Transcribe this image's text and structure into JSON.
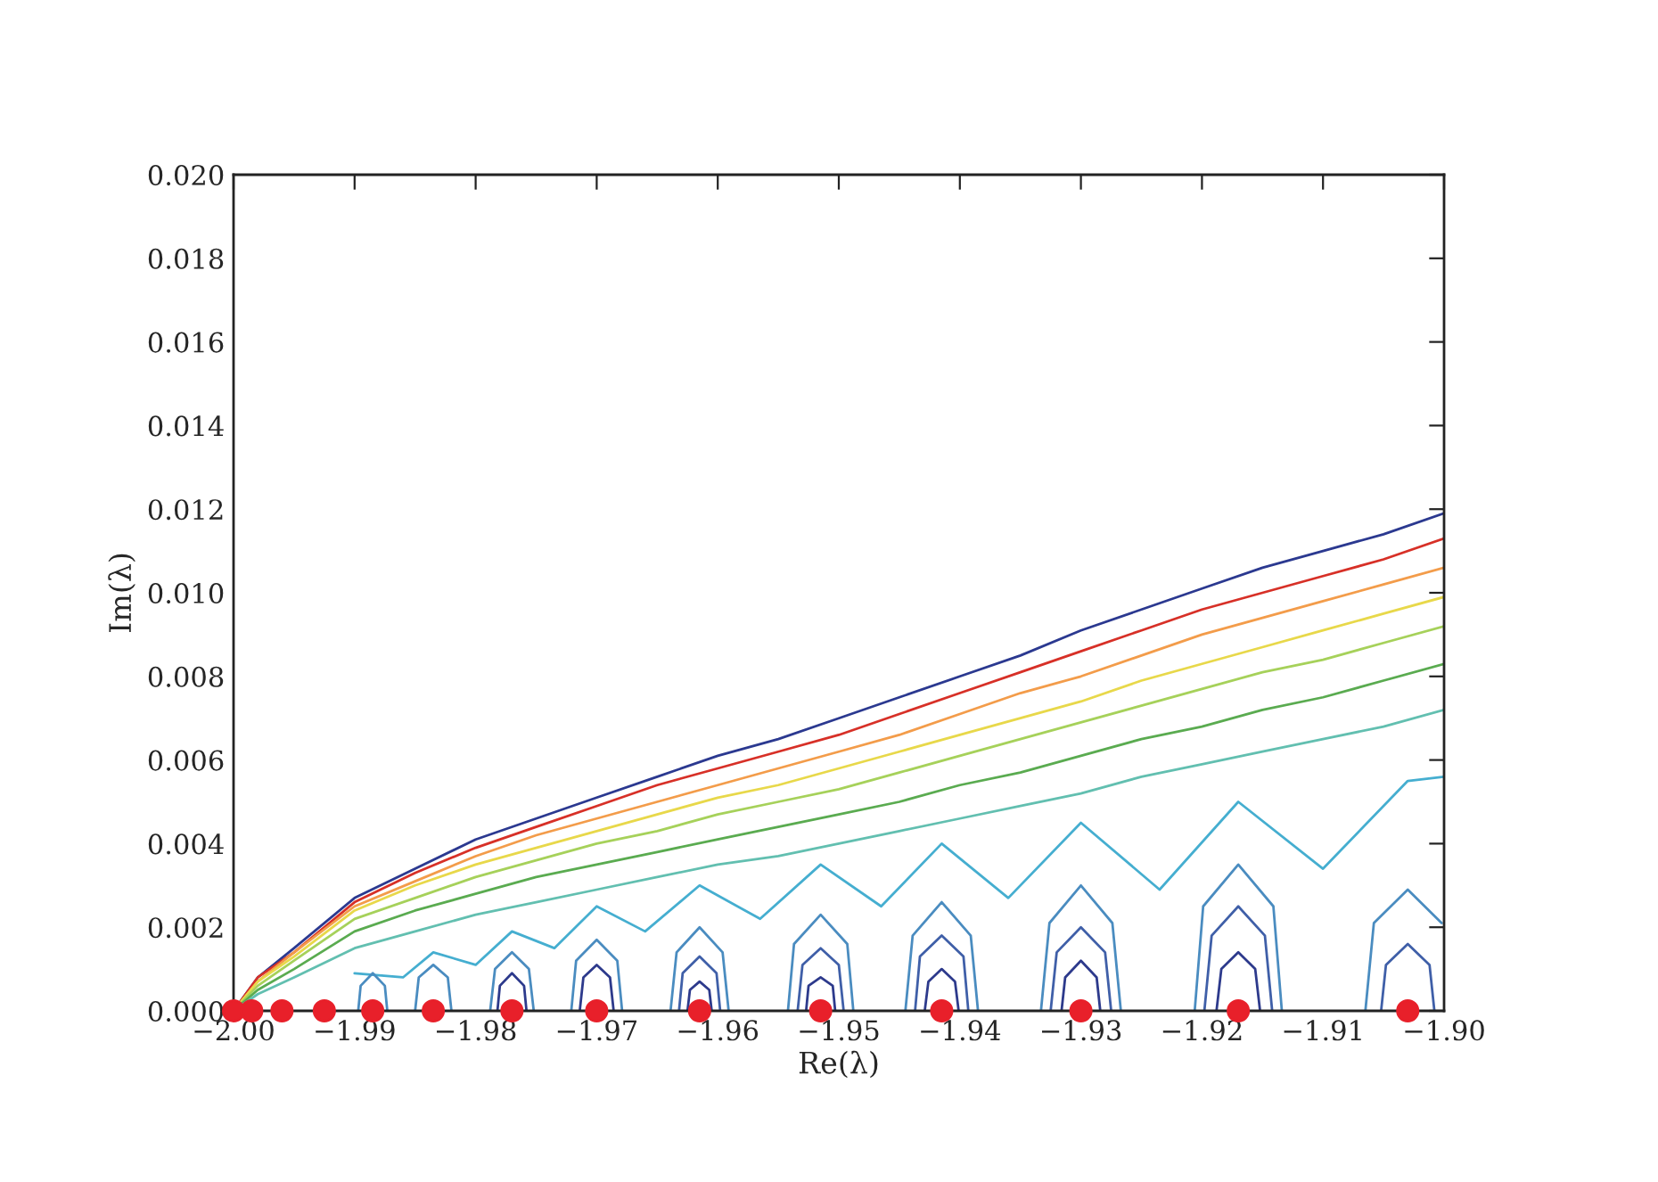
{
  "chart_data": {
    "type": "line",
    "xlabel": "Re(λ)",
    "ylabel": "Im(λ)",
    "xlim": [
      -2.0,
      -1.9
    ],
    "ylim": [
      0,
      0.02
    ],
    "xticks": [
      {
        "value": -2.0,
        "label": "−2.00"
      },
      {
        "value": -1.99,
        "label": "−1.99"
      },
      {
        "value": -1.98,
        "label": "−1.98"
      },
      {
        "value": -1.97,
        "label": "−1.97"
      },
      {
        "value": -1.96,
        "label": "−1.96"
      },
      {
        "value": -1.95,
        "label": "−1.95"
      },
      {
        "value": -1.94,
        "label": "−1.94"
      },
      {
        "value": -1.93,
        "label": "−1.93"
      },
      {
        "value": -1.92,
        "label": "−1.92"
      },
      {
        "value": -1.91,
        "label": "−1.91"
      },
      {
        "value": -1.9,
        "label": "−1.90"
      }
    ],
    "yticks": [
      {
        "value": 0,
        "label": "0.000"
      },
      {
        "value": 0.002,
        "label": "0.002"
      },
      {
        "value": 0.004,
        "label": "0.004"
      },
      {
        "value": 0.006,
        "label": "0.006"
      },
      {
        "value": 0.008,
        "label": "0.008"
      },
      {
        "value": 0.01,
        "label": "0.010"
      },
      {
        "value": 0.012,
        "label": "0.012"
      },
      {
        "value": 0.014,
        "label": "0.014"
      },
      {
        "value": 0.016,
        "label": "0.016"
      },
      {
        "value": 0.018,
        "label": "0.018"
      },
      {
        "value": 0.02,
        "label": "0.020"
      }
    ],
    "grid": false,
    "legend": false,
    "series": [
      {
        "color": "#2b3990",
        "x": [
          -2.0,
          -1.998,
          -1.995,
          -1.99,
          -1.985,
          -1.98,
          -1.975,
          -1.97,
          -1.965,
          -1.96,
          -1.955,
          -1.95,
          -1.945,
          -1.94,
          -1.935,
          -1.93,
          -1.925,
          -1.92,
          -1.915,
          -1.91,
          -1.905,
          -1.9
        ],
        "values": [
          0,
          0.0008,
          0.0015,
          0.0027,
          0.0034,
          0.0041,
          0.0046,
          0.0051,
          0.0056,
          0.0061,
          0.0065,
          0.007,
          0.0075,
          0.008,
          0.0085,
          0.0091,
          0.0096,
          0.0101,
          0.0106,
          0.011,
          0.0114,
          0.0119
        ]
      },
      {
        "color": "#d73027",
        "x": [
          -2.0,
          -1.998,
          -1.995,
          -1.99,
          -1.985,
          -1.98,
          -1.975,
          -1.97,
          -1.965,
          -1.96,
          -1.955,
          -1.95,
          -1.945,
          -1.94,
          -1.935,
          -1.93,
          -1.925,
          -1.92,
          -1.915,
          -1.91,
          -1.905,
          -1.9
        ],
        "values": [
          0,
          0.0008,
          0.0014,
          0.0026,
          0.0033,
          0.0039,
          0.0044,
          0.0049,
          0.0054,
          0.0058,
          0.0062,
          0.0066,
          0.0071,
          0.0076,
          0.0081,
          0.0086,
          0.0091,
          0.0096,
          0.01,
          0.0104,
          0.0108,
          0.0113
        ]
      },
      {
        "color": "#f39c4a",
        "x": [
          -2.0,
          -1.998,
          -1.995,
          -1.99,
          -1.985,
          -1.98,
          -1.975,
          -1.97,
          -1.965,
          -1.96,
          -1.955,
          -1.95,
          -1.945,
          -1.94,
          -1.935,
          -1.93,
          -1.925,
          -1.92,
          -1.915,
          -1.91,
          -1.905,
          -1.9
        ],
        "values": [
          0,
          0.0007,
          0.0014,
          0.0025,
          0.0031,
          0.0037,
          0.0042,
          0.0046,
          0.005,
          0.0054,
          0.0058,
          0.0062,
          0.0066,
          0.0071,
          0.0076,
          0.008,
          0.0085,
          0.009,
          0.0094,
          0.0098,
          0.0102,
          0.0106
        ]
      },
      {
        "color": "#e8d84a",
        "x": [
          -2.0,
          -1.998,
          -1.995,
          -1.99,
          -1.985,
          -1.98,
          -1.975,
          -1.97,
          -1.965,
          -1.96,
          -1.955,
          -1.95,
          -1.945,
          -1.94,
          -1.935,
          -1.93,
          -1.925,
          -1.92,
          -1.915,
          -1.91,
          -1.905,
          -1.9
        ],
        "values": [
          0,
          0.0007,
          0.0013,
          0.0024,
          0.003,
          0.0035,
          0.0039,
          0.0043,
          0.0047,
          0.0051,
          0.0054,
          0.0058,
          0.0062,
          0.0066,
          0.007,
          0.0074,
          0.0079,
          0.0083,
          0.0087,
          0.0091,
          0.0095,
          0.0099
        ]
      },
      {
        "color": "#a6d15a",
        "x": [
          -2.0,
          -1.998,
          -1.995,
          -1.99,
          -1.985,
          -1.98,
          -1.975,
          -1.97,
          -1.965,
          -1.96,
          -1.955,
          -1.95,
          -1.945,
          -1.94,
          -1.935,
          -1.93,
          -1.925,
          -1.92,
          -1.915,
          -1.91,
          -1.905,
          -1.9
        ],
        "values": [
          0,
          0.0006,
          0.0012,
          0.0022,
          0.0027,
          0.0032,
          0.0036,
          0.004,
          0.0043,
          0.0047,
          0.005,
          0.0053,
          0.0057,
          0.0061,
          0.0065,
          0.0069,
          0.0073,
          0.0077,
          0.0081,
          0.0084,
          0.0088,
          0.0092
        ]
      },
      {
        "color": "#5aab50",
        "x": [
          -2.0,
          -1.998,
          -1.995,
          -1.99,
          -1.985,
          -1.98,
          -1.975,
          -1.97,
          -1.965,
          -1.96,
          -1.955,
          -1.95,
          -1.945,
          -1.94,
          -1.935,
          -1.93,
          -1.925,
          -1.92,
          -1.915,
          -1.91,
          -1.905,
          -1.9
        ],
        "values": [
          0,
          0.0005,
          0.001,
          0.0019,
          0.0024,
          0.0028,
          0.0032,
          0.0035,
          0.0038,
          0.0041,
          0.0044,
          0.0047,
          0.005,
          0.0054,
          0.0057,
          0.0061,
          0.0065,
          0.0068,
          0.0072,
          0.0075,
          0.0079,
          0.0083
        ]
      },
      {
        "color": "#62bfb0",
        "x": [
          -2.0,
          -1.998,
          -1.995,
          -1.99,
          -1.985,
          -1.98,
          -1.975,
          -1.97,
          -1.965,
          -1.96,
          -1.955,
          -1.95,
          -1.945,
          -1.94,
          -1.935,
          -1.93,
          -1.925,
          -1.92,
          -1.915,
          -1.91,
          -1.905,
          -1.9
        ],
        "values": [
          0,
          0.0004,
          0.0008,
          0.0015,
          0.0019,
          0.0023,
          0.0026,
          0.0029,
          0.0032,
          0.0035,
          0.0037,
          0.004,
          0.0043,
          0.0046,
          0.0049,
          0.0052,
          0.0056,
          0.0059,
          0.0062,
          0.0065,
          0.0068,
          0.0072
        ]
      },
      {
        "color": "#45aed0",
        "x": [
          -1.99,
          -1.986,
          -1.9835,
          -1.98,
          -1.977,
          -1.9735,
          -1.97,
          -1.966,
          -1.9615,
          -1.9565,
          -1.9515,
          -1.9465,
          -1.9415,
          -1.936,
          -1.93,
          -1.9235,
          -1.917,
          -1.91,
          -1.903,
          -1.9
        ],
        "values": [
          0.0009,
          0.0008,
          0.0014,
          0.0011,
          0.0019,
          0.0015,
          0.0025,
          0.0019,
          0.003,
          0.0022,
          0.0035,
          0.0025,
          0.004,
          0.0027,
          0.0045,
          0.0029,
          0.005,
          0.0034,
          0.0055,
          0.0056
        ]
      },
      {
        "color": "#4a8cc0",
        "x": [
          -1.9206,
          -1.9199,
          -1.917,
          -1.9141,
          -1.9134
        ],
        "values": [
          0,
          0.0025,
          0.0035,
          0.0025,
          0
        ]
      },
      {
        "color": "#3f5fa8",
        "x": [
          -1.9198,
          -1.9192,
          -1.917,
          -1.9148,
          -1.9142
        ],
        "values": [
          0,
          0.0018,
          0.0025,
          0.0018,
          0
        ]
      },
      {
        "color": "#2d3a8c",
        "x": [
          -1.9188,
          -1.9184,
          -1.917,
          -1.9156,
          -1.9152
        ],
        "values": [
          0,
          0.001,
          0.0014,
          0.001,
          0
        ]
      },
      {
        "color": "#4a8cc0",
        "x": [
          -1.9065,
          -1.9058,
          -1.903,
          -1.9002
        ],
        "values": [
          0,
          0.0021,
          0.0029,
          0.0021
        ]
      },
      {
        "color": "#3f5fa8",
        "x": [
          -1.9052,
          -1.9048,
          -1.903,
          -1.9012,
          -1.9008
        ],
        "values": [
          0,
          0.0011,
          0.0016,
          0.0011,
          0
        ]
      },
      {
        "color": "#4a8cc0",
        "x": [
          -1.9333,
          -1.9326,
          -1.93,
          -1.9274,
          -1.9267
        ],
        "values": [
          0,
          0.0021,
          0.003,
          0.0021,
          0
        ]
      },
      {
        "color": "#3f5fa8",
        "x": [
          -1.9325,
          -1.932,
          -1.93,
          -1.928,
          -1.9275
        ],
        "values": [
          0,
          0.0014,
          0.002,
          0.0014,
          0
        ]
      },
      {
        "color": "#2d3a8c",
        "x": [
          -1.9316,
          -1.9313,
          -1.93,
          -1.9287,
          -1.9284
        ],
        "values": [
          0,
          0.0008,
          0.0012,
          0.0008,
          0
        ]
      },
      {
        "color": "#4a8cc0",
        "x": [
          -1.9445,
          -1.9439,
          -1.9415,
          -1.9391,
          -1.9385
        ],
        "values": [
          0,
          0.0018,
          0.0026,
          0.0018,
          0
        ]
      },
      {
        "color": "#3f5fa8",
        "x": [
          -1.9437,
          -1.9433,
          -1.9415,
          -1.9397,
          -1.9393
        ],
        "values": [
          0,
          0.0013,
          0.0018,
          0.0013,
          0
        ]
      },
      {
        "color": "#2d3a8c",
        "x": [
          -1.9429,
          -1.9426,
          -1.9415,
          -1.9404,
          -1.9401
        ],
        "values": [
          0,
          0.0007,
          0.001,
          0.0007,
          0
        ]
      },
      {
        "color": "#4a8cc0",
        "x": [
          -1.9542,
          -1.9537,
          -1.9515,
          -1.9493,
          -1.9488
        ],
        "values": [
          0,
          0.0016,
          0.0023,
          0.0016,
          0
        ]
      },
      {
        "color": "#3f5fa8",
        "x": [
          -1.9534,
          -1.953,
          -1.9515,
          -1.95,
          -1.9496
        ],
        "values": [
          0,
          0.0011,
          0.0015,
          0.0011,
          0
        ]
      },
      {
        "color": "#2d3a8c",
        "x": [
          -1.9527,
          -1.9525,
          -1.9515,
          -1.9505,
          -1.9503
        ],
        "values": [
          0,
          0.0006,
          0.0008,
          0.0006,
          0
        ]
      },
      {
        "color": "#4a8cc0",
        "x": [
          -1.9639,
          -1.9634,
          -1.9615,
          -1.9596,
          -1.9591
        ],
        "values": [
          0,
          0.0014,
          0.002,
          0.0014,
          0
        ]
      },
      {
        "color": "#3f5fa8",
        "x": [
          -1.9632,
          -1.9629,
          -1.9615,
          -1.9601,
          -1.9598
        ],
        "values": [
          0,
          0.0009,
          0.0013,
          0.0009,
          0
        ]
      },
      {
        "color": "#2d3a8c",
        "x": [
          -1.9625,
          -1.9623,
          -1.9615,
          -1.9607,
          -1.9605
        ],
        "values": [
          0,
          0.0005,
          0.0007,
          0.0005,
          0
        ]
      },
      {
        "color": "#4a8cc0",
        "x": [
          -1.9721,
          -1.9717,
          -1.97,
          -1.9683,
          -1.9679
        ],
        "values": [
          0,
          0.0012,
          0.0017,
          0.0012,
          0
        ]
      },
      {
        "color": "#2d3a8c",
        "x": [
          -1.9714,
          -1.9711,
          -1.97,
          -1.9689,
          -1.9686
        ],
        "values": [
          0,
          0.0008,
          0.0011,
          0.0008,
          0
        ]
      },
      {
        "color": "#4a8cc0",
        "x": [
          -1.9788,
          -1.9784,
          -1.977,
          -1.9756,
          -1.9752
        ],
        "values": [
          0,
          0.001,
          0.0014,
          0.001,
          0
        ]
      },
      {
        "color": "#2d3a8c",
        "x": [
          -1.9782,
          -1.978,
          -1.977,
          -1.976,
          -1.9758
        ],
        "values": [
          0,
          0.0006,
          0.0009,
          0.0006,
          0
        ]
      },
      {
        "color": "#4a8cc0",
        "x": [
          -1.985,
          -1.9847,
          -1.9835,
          -1.9823,
          -1.982
        ],
        "values": [
          0,
          0.0008,
          0.0011,
          0.0008,
          0
        ]
      },
      {
        "color": "#4a8cc0",
        "x": [
          -1.9897,
          -1.9895,
          -1.9885,
          -1.9875,
          -1.9873
        ],
        "values": [
          0,
          0.0006,
          0.0009,
          0.0006,
          0
        ]
      },
      {
        "type": "scatter",
        "marker": "circle",
        "color": "#e8202a",
        "x": [
          -2.0,
          -1.9985,
          -1.996,
          -1.9925,
          -1.9885,
          -1.9835,
          -1.977,
          -1.97,
          -1.9615,
          -1.9515,
          -1.9415,
          -1.93,
          -1.917,
          -1.903
        ],
        "values": [
          0,
          0,
          0,
          0,
          0,
          0,
          0,
          0,
          0,
          0,
          0,
          0,
          0,
          0
        ]
      }
    ]
  }
}
